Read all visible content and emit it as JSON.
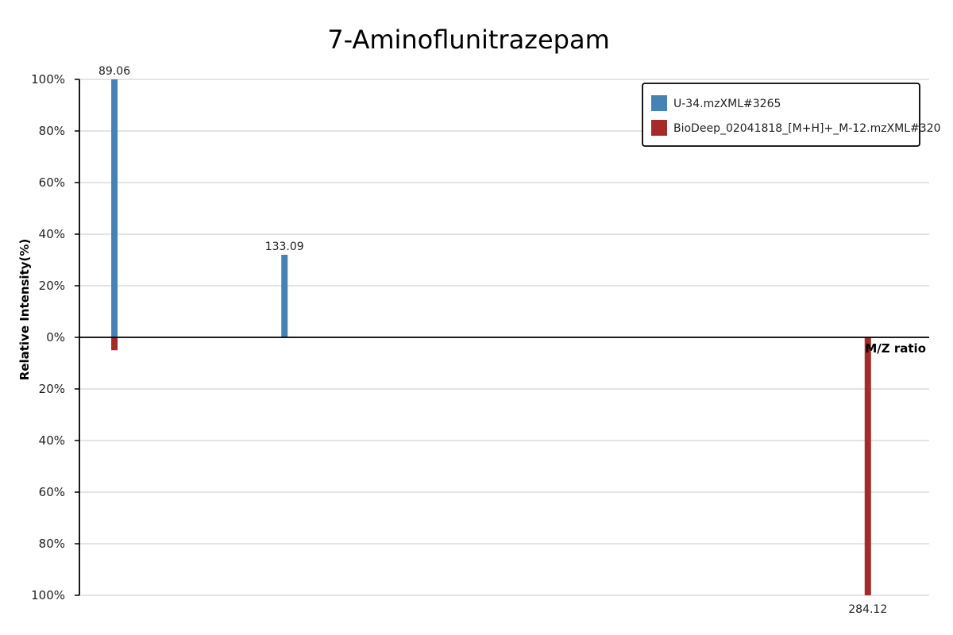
{
  "chart_data": {
    "type": "bar",
    "title": "7-Aminoflunitrazepam",
    "xlabel": "M/Z ratio",
    "ylabel": "Relative Intensity(%)",
    "xlim": [
      80,
      300
    ],
    "ylim": [
      -100,
      100
    ],
    "yticks": [
      "100%",
      "80%",
      "60%",
      "40%",
      "20%",
      "0%",
      "20%",
      "40%",
      "60%",
      "80%",
      "100%"
    ],
    "grid": true,
    "legend_position": "top-right",
    "series": [
      {
        "name": "U-34.mzXML#3265",
        "color": "#4682b4",
        "direction": "up",
        "points": [
          {
            "mz": 89.06,
            "intensity": 100,
            "label": "89.06"
          },
          {
            "mz": 133.09,
            "intensity": 32,
            "label": "133.09"
          }
        ]
      },
      {
        "name": "BioDeep_02041818_[M+H]+_M-12.mzXML#320",
        "color": "#a52a2a",
        "direction": "down",
        "points": [
          {
            "mz": 89.06,
            "intensity": 5,
            "label": ""
          },
          {
            "mz": 284.12,
            "intensity": 100,
            "label": "284.12"
          }
        ]
      }
    ]
  }
}
